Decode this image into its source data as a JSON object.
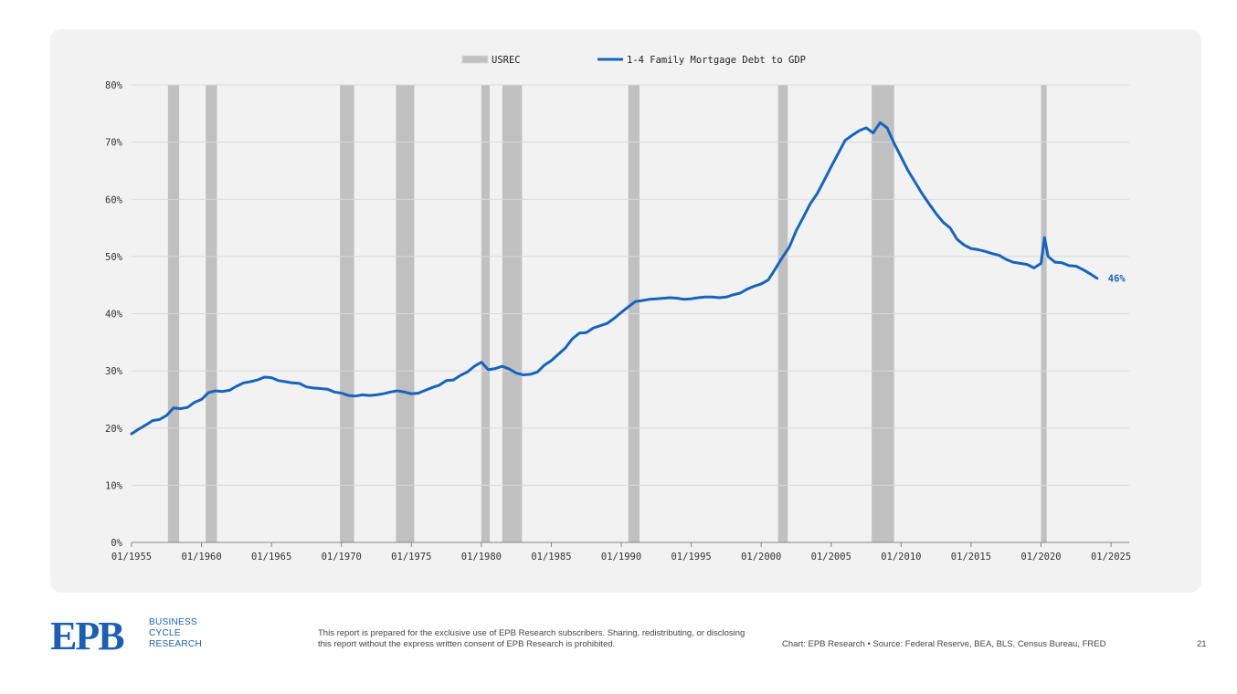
{
  "chart_data": {
    "type": "line",
    "title": "",
    "xlabel": "",
    "ylabel": "",
    "x_range": [
      1955,
      2026.3
    ],
    "ylim": [
      0,
      80
    ],
    "y_ticks": [
      "0%",
      "10%",
      "20%",
      "30%",
      "40%",
      "50%",
      "60%",
      "70%",
      "80%"
    ],
    "x_ticks": [
      "01/1955",
      "01/1960",
      "01/1965",
      "01/1970",
      "01/1975",
      "01/1980",
      "01/1985",
      "01/1990",
      "01/1995",
      "01/2000",
      "01/2005",
      "01/2010",
      "01/2015",
      "01/2020",
      "01/2025"
    ],
    "grid": true,
    "legend_position": "top-center",
    "legend": {
      "recession": "USREC",
      "series": "1-4 Family Mortgage Debt to GDP"
    },
    "recessions": [
      [
        1957.6,
        1958.4
      ],
      [
        1960.3,
        1961.1
      ],
      [
        1969.9,
        1970.9
      ],
      [
        1973.9,
        1975.2
      ],
      [
        1980.0,
        1980.6
      ],
      [
        1981.5,
        1982.9
      ],
      [
        1990.5,
        1991.3
      ],
      [
        2001.2,
        2001.9
      ],
      [
        2007.9,
        2009.5
      ],
      [
        2020.0,
        2020.4
      ]
    ],
    "series": [
      {
        "name": "1-4 Family Mortgage Debt to GDP",
        "color": "#1565c0",
        "end_label": "46%",
        "x": [
          1955.0,
          1955.5,
          1956.0,
          1956.5,
          1957.0,
          1957.5,
          1958.0,
          1958.5,
          1959.0,
          1959.5,
          1960.0,
          1960.5,
          1961.0,
          1961.5,
          1962.0,
          1962.5,
          1963.0,
          1963.5,
          1964.0,
          1964.5,
          1965.0,
          1965.5,
          1966.0,
          1966.5,
          1967.0,
          1967.5,
          1968.0,
          1968.5,
          1969.0,
          1969.5,
          1970.0,
          1970.5,
          1971.0,
          1971.5,
          1972.0,
          1972.5,
          1973.0,
          1973.5,
          1974.0,
          1974.5,
          1975.0,
          1975.5,
          1976.0,
          1976.5,
          1977.0,
          1977.5,
          1978.0,
          1978.5,
          1979.0,
          1979.5,
          1980.0,
          1980.5,
          1981.0,
          1981.5,
          1982.0,
          1982.5,
          1983.0,
          1983.5,
          1984.0,
          1984.5,
          1985.0,
          1985.5,
          1986.0,
          1986.5,
          1987.0,
          1987.5,
          1988.0,
          1988.5,
          1989.0,
          1989.5,
          1990.0,
          1990.5,
          1991.0,
          1991.5,
          1992.0,
          1992.5,
          1993.0,
          1993.5,
          1994.0,
          1994.5,
          1995.0,
          1995.5,
          1996.0,
          1996.5,
          1997.0,
          1997.5,
          1998.0,
          1998.5,
          1999.0,
          1999.5,
          2000.0,
          2000.5,
          2001.0,
          2001.5,
          2002.0,
          2002.5,
          2003.0,
          2003.5,
          2004.0,
          2004.5,
          2005.0,
          2005.5,
          2006.0,
          2006.5,
          2007.0,
          2007.5,
          2008.0,
          2008.5,
          2009.0,
          2009.5,
          2010.0,
          2010.5,
          2011.0,
          2011.5,
          2012.0,
          2012.5,
          2013.0,
          2013.5,
          2014.0,
          2014.5,
          2015.0,
          2015.5,
          2016.0,
          2016.5,
          2017.0,
          2017.5,
          2018.0,
          2018.5,
          2019.0,
          2019.5,
          2020.0,
          2020.25,
          2020.5,
          2021.0,
          2021.5,
          2022.0,
          2022.5,
          2023.0,
          2023.5,
          2024.0
        ],
        "y": [
          19.0,
          19.8,
          20.5,
          21.3,
          21.5,
          22.2,
          23.5,
          23.4,
          23.6,
          24.5,
          25.0,
          26.2,
          26.5,
          26.4,
          26.6,
          27.3,
          27.9,
          28.1,
          28.4,
          28.9,
          28.8,
          28.3,
          28.1,
          27.9,
          27.8,
          27.2,
          27.0,
          26.9,
          26.8,
          26.3,
          26.1,
          25.7,
          25.6,
          25.8,
          25.7,
          25.8,
          26.0,
          26.3,
          26.5,
          26.3,
          26.0,
          26.1,
          26.6,
          27.1,
          27.5,
          28.3,
          28.4,
          29.2,
          29.8,
          30.8,
          31.5,
          30.2,
          30.4,
          30.8,
          30.3,
          29.6,
          29.3,
          29.4,
          29.8,
          31.0,
          31.8,
          32.9,
          34.0,
          35.6,
          36.6,
          36.7,
          37.5,
          37.9,
          38.3,
          39.2,
          40.2,
          41.2,
          42.1,
          42.3,
          42.5,
          42.6,
          42.7,
          42.8,
          42.7,
          42.5,
          42.6,
          42.8,
          42.9,
          42.9,
          42.8,
          42.9,
          43.3,
          43.6,
          44.3,
          44.8,
          45.2,
          45.9,
          47.8,
          49.8,
          51.6,
          54.5,
          56.8,
          59.2,
          61.0,
          63.3,
          65.7,
          68.0,
          70.3,
          71.2,
          72.0,
          72.5,
          71.6,
          73.4,
          72.5,
          69.8,
          67.4,
          65.0,
          63.0,
          61.0,
          59.2,
          57.5,
          56.0,
          55.0,
          53.0,
          52.0,
          51.4,
          51.2,
          50.9,
          50.5,
          50.2,
          49.5,
          49.0,
          48.8,
          48.6,
          48.0,
          48.8,
          53.3,
          50.0,
          49.0,
          48.9,
          48.4,
          48.3,
          47.7,
          47.0,
          46.2
        ]
      }
    ]
  },
  "footer": {
    "logo_text": "EPB",
    "brand_line1": "BUSINESS",
    "brand_line2": "CYCLE",
    "brand_line3": "RESEARCH",
    "disclaimer": "This report is prepared for the exclusive use of EPB Research subscribers. Sharing, redistributing, or disclosing this report without the express written consent of EPB Research is prohibited.",
    "source": "Chart: EPB Research  •  Source: Federal Reserve, BEA, BLS, Census Bureau, FRED",
    "page_number": "21"
  },
  "colors": {
    "recession": "#c0c0c0",
    "series": "#1565c0",
    "panel": "#f2f2f2",
    "brand": "#1a5fb4"
  }
}
